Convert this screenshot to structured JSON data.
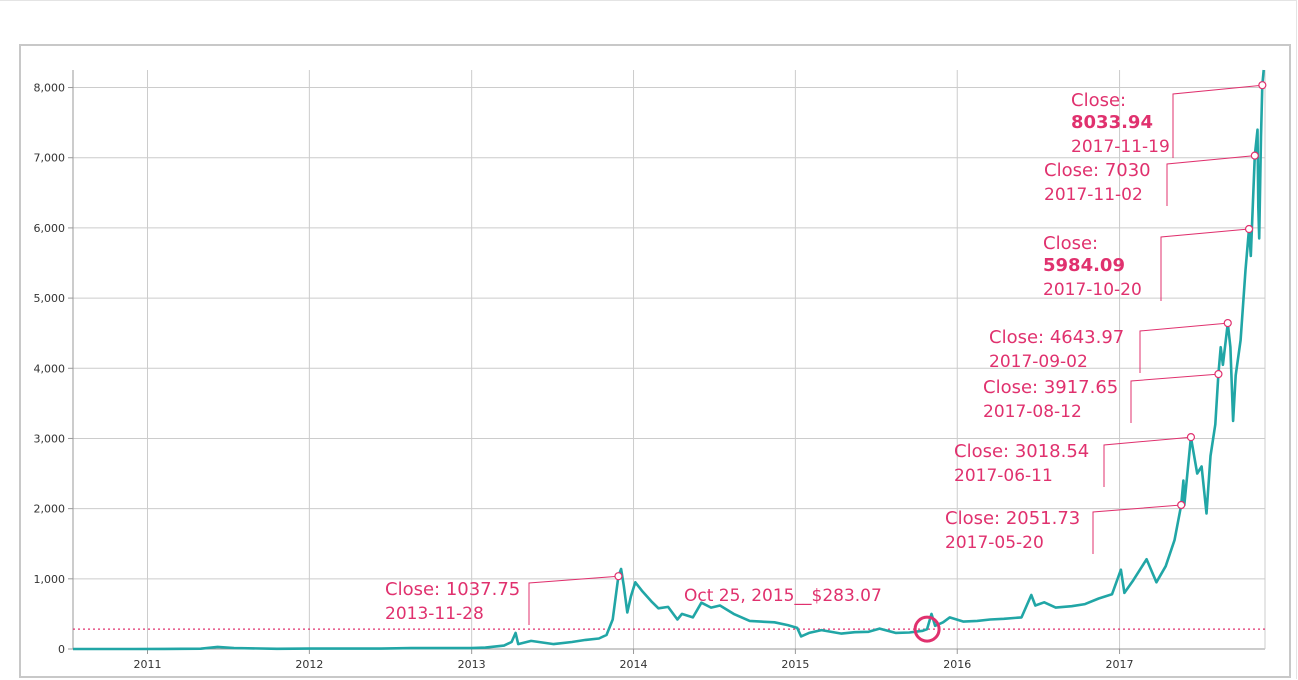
{
  "colors": {
    "line": "#21a6a6",
    "annotation": "#e0316e",
    "grid": "#cccccc",
    "axis": "#999999"
  },
  "chart_data": {
    "type": "line",
    "title": "",
    "xlabel": "",
    "ylabel": "",
    "xlim": [
      "2010-07-17",
      "2017-11-25"
    ],
    "ylim": [
      0,
      8250
    ],
    "grid": true,
    "legend": "none",
    "x_ticks": [
      "2011",
      "2012",
      "2013",
      "2014",
      "2015",
      "2016",
      "2017"
    ],
    "y_ticks": [
      "0",
      "1,000",
      "2,000",
      "3,000",
      "4,000",
      "5,000",
      "6,000",
      "7,000",
      "8,000"
    ],
    "series": [
      {
        "points": [
          [
            "2010-07-17",
            0.05
          ],
          [
            "2010-12-01",
            0.3
          ],
          [
            "2011-02-09",
            1
          ],
          [
            "2011-05-01",
            4
          ],
          [
            "2011-06-08",
            30
          ],
          [
            "2011-07-15",
            14
          ],
          [
            "2011-10-20",
            3
          ],
          [
            "2012-01-01",
            5
          ],
          [
            "2012-06-01",
            6
          ],
          [
            "2012-08-17",
            13
          ],
          [
            "2012-12-31",
            13
          ],
          [
            "2013-02-01",
            20
          ],
          [
            "2013-03-15",
            48
          ],
          [
            "2013-04-01",
            100
          ],
          [
            "2013-04-10",
            230
          ],
          [
            "2013-04-16",
            70
          ],
          [
            "2013-05-15",
            115
          ],
          [
            "2013-07-05",
            70
          ],
          [
            "2013-08-15",
            100
          ],
          [
            "2013-09-15",
            130
          ],
          [
            "2013-10-15",
            150
          ],
          [
            "2013-11-01",
            200
          ],
          [
            "2013-11-15",
            420
          ],
          [
            "2013-11-28",
            1037.75
          ],
          [
            "2013-12-04",
            1140
          ],
          [
            "2013-12-10",
            900
          ],
          [
            "2013-12-18",
            520
          ],
          [
            "2013-12-26",
            750
          ],
          [
            "2014-01-05",
            950
          ],
          [
            "2014-01-20",
            830
          ],
          [
            "2014-02-10",
            680
          ],
          [
            "2014-02-26",
            580
          ],
          [
            "2014-03-20",
            600
          ],
          [
            "2014-04-10",
            420
          ],
          [
            "2014-04-20",
            500
          ],
          [
            "2014-05-15",
            450
          ],
          [
            "2014-06-03",
            660
          ],
          [
            "2014-06-25",
            590
          ],
          [
            "2014-07-15",
            620
          ],
          [
            "2014-08-15",
            500
          ],
          [
            "2014-09-20",
            400
          ],
          [
            "2014-10-15",
            390
          ],
          [
            "2014-11-15",
            380
          ],
          [
            "2014-12-15",
            340
          ],
          [
            "2015-01-05",
            300
          ],
          [
            "2015-01-14",
            180
          ],
          [
            "2015-02-01",
            230
          ],
          [
            "2015-03-01",
            270
          ],
          [
            "2015-04-15",
            220
          ],
          [
            "2015-05-15",
            240
          ],
          [
            "2015-06-15",
            245
          ],
          [
            "2015-07-10",
            290
          ],
          [
            "2015-08-15",
            230
          ],
          [
            "2015-09-15",
            235
          ],
          [
            "2015-10-15",
            260
          ],
          [
            "2015-10-25",
            283.07
          ],
          [
            "2015-11-04",
            500
          ],
          [
            "2015-11-12",
            330
          ],
          [
            "2015-11-30",
            380
          ],
          [
            "2015-12-15",
            450
          ],
          [
            "2016-01-15",
            390
          ],
          [
            "2016-02-15",
            400
          ],
          [
            "2016-03-15",
            420
          ],
          [
            "2016-04-15",
            430
          ],
          [
            "2016-05-25",
            450
          ],
          [
            "2016-06-16",
            770
          ],
          [
            "2016-06-25",
            620
          ],
          [
            "2016-07-15",
            665
          ],
          [
            "2016-08-10",
            590
          ],
          [
            "2016-09-15",
            610
          ],
          [
            "2016-10-15",
            640
          ],
          [
            "2016-11-15",
            720
          ],
          [
            "2016-12-15",
            780
          ],
          [
            "2017-01-04",
            1130
          ],
          [
            "2017-01-12",
            800
          ],
          [
            "2017-02-01",
            980
          ],
          [
            "2017-03-03",
            1280
          ],
          [
            "2017-03-25",
            950
          ],
          [
            "2017-04-15",
            1180
          ],
          [
            "2017-05-05",
            1550
          ],
          [
            "2017-05-20",
            2051.73
          ],
          [
            "2017-05-25",
            2400
          ],
          [
            "2017-05-27",
            2050
          ],
          [
            "2017-06-11",
            3018.54
          ],
          [
            "2017-06-25",
            2500
          ],
          [
            "2017-07-05",
            2600
          ],
          [
            "2017-07-16",
            1930
          ],
          [
            "2017-07-25",
            2750
          ],
          [
            "2017-08-05",
            3200
          ],
          [
            "2017-08-12",
            3917.65
          ],
          [
            "2017-08-17",
            4300
          ],
          [
            "2017-08-22",
            4050
          ],
          [
            "2017-09-02",
            4643.97
          ],
          [
            "2017-09-08",
            4300
          ],
          [
            "2017-09-14",
            3250
          ],
          [
            "2017-09-20",
            3900
          ],
          [
            "2017-10-01",
            4400
          ],
          [
            "2017-10-12",
            5400
          ],
          [
            "2017-10-20",
            5984.09
          ],
          [
            "2017-10-24",
            5600
          ],
          [
            "2017-11-02",
            7030
          ],
          [
            "2017-11-08",
            7400
          ],
          [
            "2017-11-10",
            6300
          ],
          [
            "2017-11-12",
            5850
          ],
          [
            "2017-11-16",
            7300
          ],
          [
            "2017-11-19",
            8033.94
          ],
          [
            "2017-11-22",
            8250
          ]
        ]
      }
    ],
    "reference_line": {
      "value": 283.07
    },
    "highlight": {
      "date": "2015-10-25",
      "value": 283.07,
      "label": "Oct 25, 2015__$283.07"
    },
    "annotations": [
      {
        "date": "2013-11-28",
        "value": 1037.75,
        "title": "Close: 1037.75",
        "sub": "2013-11-28"
      },
      {
        "date": "2017-05-20",
        "value": 2051.73,
        "title": "Close: 2051.73",
        "sub": "2017-05-20"
      },
      {
        "date": "2017-06-11",
        "value": 3018.54,
        "title": "Close: 3018.54",
        "sub": "2017-06-11"
      },
      {
        "date": "2017-08-12",
        "value": 3917.65,
        "title": "Close: 3917.65",
        "sub": "2017-08-12"
      },
      {
        "date": "2017-09-02",
        "value": 4643.97,
        "title": "Close: 4643.97",
        "sub": "2017-09-02"
      },
      {
        "date": "2017-10-20",
        "value": 5984.09,
        "title": "Close:",
        "title2": "5984.09",
        "sub": "2017-10-20"
      },
      {
        "date": "2017-11-02",
        "value": 7030,
        "title": "Close: 7030",
        "sub": "2017-11-02"
      },
      {
        "date": "2017-11-19",
        "value": 8033.94,
        "title": "Close:",
        "title2": "8033.94",
        "sub": "2017-11-19"
      }
    ]
  }
}
